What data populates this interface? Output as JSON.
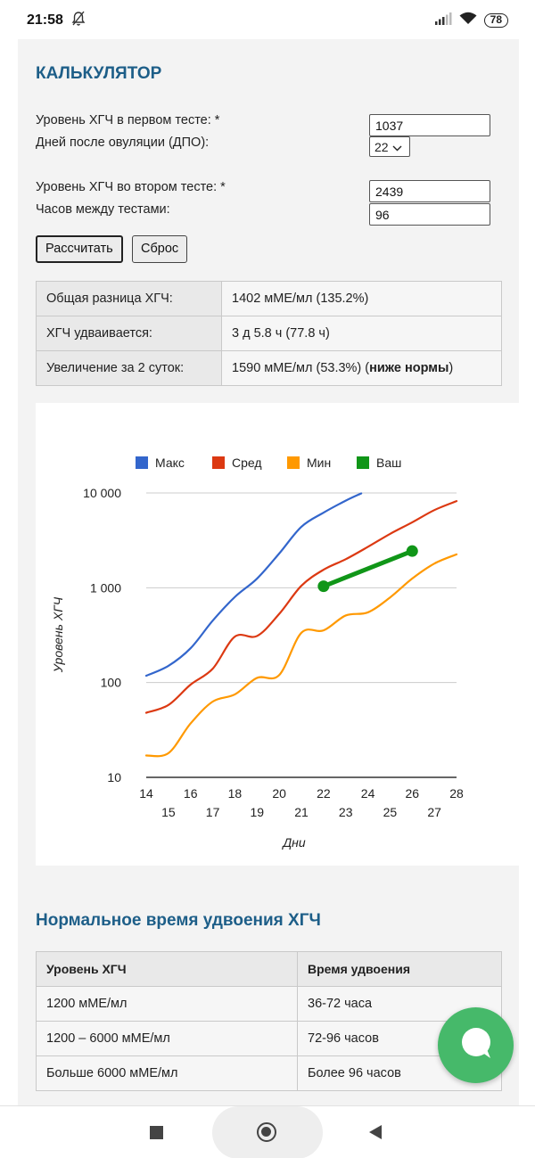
{
  "status_bar": {
    "time": "21:58",
    "battery": "78"
  },
  "calculator": {
    "title": "КАЛЬКУЛЯТОР",
    "first_test_label": "Уровень ХГЧ в первом тесте: *",
    "first_test_value": "1037",
    "dpo_label": "Дней после овуляции (ДПО):",
    "dpo_value": "22",
    "second_test_label": "Уровень ХГЧ во втором тесте: *",
    "second_test_value": "2439",
    "hours_label": "Часов между тестами:",
    "hours_value": "96",
    "calculate_label": "Рассчитать",
    "reset_label": "Сброс"
  },
  "results": {
    "rows": [
      {
        "label": "Общая разница ХГЧ:",
        "value": "1402 мМЕ/мл (135.2%)"
      },
      {
        "label": "ХГЧ удваивается:",
        "value": "3 д 5.8 ч (77.8 ч)"
      },
      {
        "label": "Увеличение за 2 суток:",
        "value": "1590 мМЕ/мл (53.3%) (",
        "bold": "ниже нормы",
        "suffix": ")"
      }
    ]
  },
  "chart_data": {
    "type": "line",
    "xlabel": "Дни",
    "ylabel": "Уровень ХГЧ",
    "y_scale": "log",
    "ylim": [
      10,
      10000
    ],
    "xlim": [
      14,
      28
    ],
    "y_ticks": [
      {
        "value": 10,
        "label": "10"
      },
      {
        "value": 100,
        "label": "100"
      },
      {
        "value": 1000,
        "label": "1 000"
      },
      {
        "value": 10000,
        "label": "10 000"
      }
    ],
    "x_ticks": [
      14,
      15,
      16,
      17,
      18,
      19,
      20,
      21,
      22,
      23,
      24,
      25,
      26,
      27,
      28
    ],
    "legend_position": "top",
    "grid": true,
    "series": [
      {
        "name": "Макс",
        "color": "#3366cc",
        "points": [
          [
            14,
            118
          ],
          [
            15,
            150
          ],
          [
            16,
            230
          ],
          [
            17,
            450
          ],
          [
            18,
            800
          ],
          [
            19,
            1250
          ],
          [
            20,
            2300
          ],
          [
            21,
            4400
          ],
          [
            22,
            6200
          ],
          [
            23,
            8300
          ],
          [
            23.7,
            9900
          ]
        ]
      },
      {
        "name": "Сред",
        "color": "#dc3912",
        "points": [
          [
            14,
            48
          ],
          [
            15,
            58
          ],
          [
            16,
            95
          ],
          [
            17,
            140
          ],
          [
            18,
            305
          ],
          [
            19,
            310
          ],
          [
            20,
            530
          ],
          [
            21,
            1050
          ],
          [
            22,
            1550
          ],
          [
            23,
            2000
          ],
          [
            24,
            2700
          ],
          [
            25,
            3700
          ],
          [
            26,
            4900
          ],
          [
            27,
            6600
          ],
          [
            28,
            8200
          ]
        ]
      },
      {
        "name": "Мин",
        "color": "#ff9900",
        "points": [
          [
            14,
            17
          ],
          [
            15,
            18
          ],
          [
            16,
            37
          ],
          [
            17,
            63
          ],
          [
            18,
            75
          ],
          [
            19,
            112
          ],
          [
            20,
            120
          ],
          [
            21,
            335
          ],
          [
            22,
            355
          ],
          [
            23,
            510
          ],
          [
            24,
            550
          ],
          [
            25,
            790
          ],
          [
            26,
            1250
          ],
          [
            27,
            1800
          ],
          [
            28,
            2250
          ]
        ]
      },
      {
        "name": "Ваш",
        "color": "#109618",
        "points": [
          [
            22,
            1037
          ],
          [
            26,
            2439
          ]
        ]
      }
    ]
  },
  "normal_doubling": {
    "title": "Нормальное время удвоения ХГЧ",
    "headers": [
      "Уровень ХГЧ",
      "Время удвоения"
    ],
    "rows": [
      [
        "1200 мМЕ/мл",
        "36-72 часа"
      ],
      [
        "1200 – 6000 мМЕ/мл",
        "72-96 часов"
      ],
      [
        "Больше 6000 мМЕ/мл",
        "Более 96 часов"
      ]
    ]
  },
  "icons": {
    "status": [
      "bell-off-icon",
      "signal-icon",
      "wifi-icon",
      "battery-icon"
    ],
    "fab": "chat-bubble-icon",
    "nav": [
      "recent-apps-icon",
      "home-icon",
      "back-icon"
    ]
  }
}
